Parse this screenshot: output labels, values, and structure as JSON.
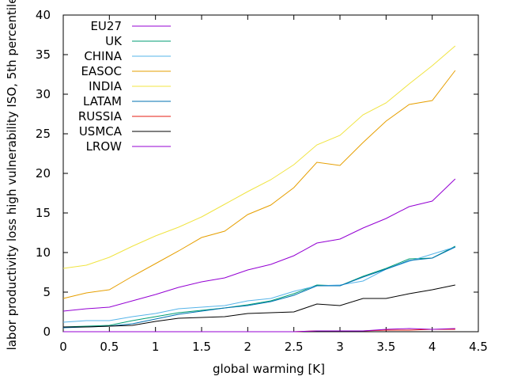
{
  "chart_data": {
    "type": "line",
    "xlabel": "global warming [K]",
    "ylabel": "labor productivity loss high vulnerability ISO, 5th percentile",
    "xlim": [
      0,
      4.5
    ],
    "ylim": [
      0,
      40
    ],
    "xticks": [
      0,
      0.5,
      1,
      1.5,
      2,
      2.5,
      3,
      3.5,
      4,
      4.5
    ],
    "xtick_labels": [
      "0",
      "0.5",
      "1",
      "1.5",
      "2",
      "2.5",
      "3",
      "3.5",
      "4",
      "4.5"
    ],
    "yticks": [
      0,
      5,
      10,
      15,
      20,
      25,
      30,
      35,
      40
    ],
    "ytick_labels": [
      "0",
      "5",
      "10",
      "15",
      "20",
      "25",
      "30",
      "35",
      "40"
    ],
    "grid": false,
    "legend_position": "top-left",
    "x": [
      0,
      0.25,
      0.5,
      0.75,
      1,
      1.25,
      1.5,
      1.75,
      2,
      2.25,
      2.5,
      2.75,
      3,
      3.25,
      3.5,
      3.75,
      4,
      4.25
    ],
    "series": [
      {
        "name": "EU27",
        "color": "#9400d3",
        "values": [
          2.6,
          2.9,
          3.1,
          3.9,
          4.7,
          5.6,
          6.3,
          6.8,
          7.8,
          8.5,
          9.6,
          11.2,
          11.7,
          13.1,
          14.3,
          15.8,
          16.5,
          19.3
        ]
      },
      {
        "name": "UK",
        "color": "#009e73",
        "values": [
          0.6,
          0.7,
          0.8,
          1.4,
          1.9,
          2.4,
          2.7,
          3.0,
          3.4,
          3.9,
          4.8,
          5.9,
          5.8,
          7.0,
          8.0,
          9.2,
          9.3,
          10.8
        ]
      },
      {
        "name": "CHINA",
        "color": "#56b4e9",
        "values": [
          1.2,
          1.4,
          1.4,
          1.9,
          2.3,
          2.9,
          3.1,
          3.3,
          3.9,
          4.2,
          5.1,
          5.8,
          5.9,
          6.4,
          7.9,
          8.9,
          9.8,
          10.7
        ]
      },
      {
        "name": "EASOC",
        "color": "#e69f00",
        "values": [
          4.2,
          4.9,
          5.3,
          7.0,
          8.6,
          10.2,
          11.9,
          12.7,
          14.8,
          16.0,
          18.2,
          21.4,
          21.0,
          23.9,
          26.6,
          28.7,
          29.2,
          33.0
        ]
      },
      {
        "name": "INDIA",
        "color": "#f0e442",
        "values": [
          8.0,
          8.4,
          9.4,
          10.8,
          12.1,
          13.2,
          14.5,
          16.1,
          17.7,
          19.2,
          21.1,
          23.6,
          24.8,
          27.4,
          28.9,
          31.3,
          33.6,
          36.1
        ]
      },
      {
        "name": "LATAM",
        "color": "#0072b2",
        "values": [
          0.5,
          0.6,
          0.7,
          1.0,
          1.6,
          2.2,
          2.6,
          3.0,
          3.3,
          3.8,
          4.6,
          5.8,
          5.8,
          6.9,
          7.9,
          9.0,
          9.3,
          10.7
        ]
      },
      {
        "name": "RUSSIA",
        "color": "#e51e10",
        "values": [
          0,
          0,
          0,
          0,
          0,
          0,
          0,
          0,
          0,
          0,
          0,
          0.1,
          0.1,
          0.1,
          0.2,
          0.2,
          0.3,
          0.3
        ]
      },
      {
        "name": "USMCA",
        "color": "#000000",
        "values": [
          0.6,
          0.6,
          0.7,
          0.8,
          1.3,
          1.7,
          1.8,
          1.9,
          2.3,
          2.4,
          2.5,
          3.5,
          3.3,
          4.2,
          4.2,
          4.8,
          5.3,
          5.9
        ]
      },
      {
        "name": "LROW",
        "color": "#9400d3",
        "values": [
          0,
          0,
          0,
          0,
          0,
          0,
          0,
          0,
          0,
          0,
          0,
          0.1,
          0.1,
          0.1,
          0.3,
          0.4,
          0.3,
          0.4
        ]
      }
    ]
  }
}
